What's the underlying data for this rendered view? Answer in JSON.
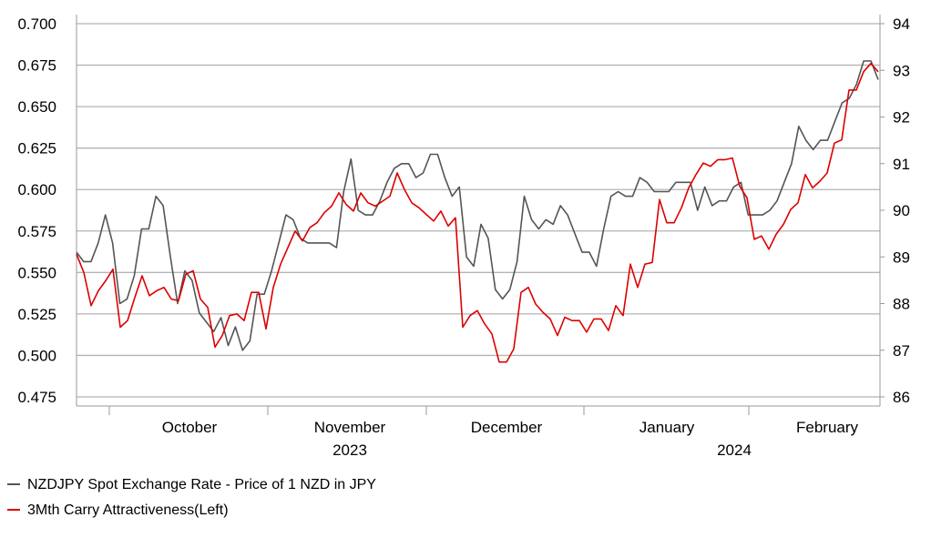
{
  "chart_data": {
    "type": "line",
    "title": "",
    "legend_position": "bottom-left",
    "grid": true,
    "x_axis": {
      "months": [
        "October",
        "November",
        "December",
        "January",
        "February"
      ],
      "years": [
        {
          "label": "2023",
          "month_index": 1
        },
        {
          "label": "2024",
          "month_index": 4
        }
      ]
    },
    "y_left": {
      "ylim": [
        0.475,
        0.7
      ],
      "ticks": [
        "0.475",
        "0.500",
        "0.525",
        "0.550",
        "0.575",
        "0.600",
        "0.625",
        "0.650",
        "0.675",
        "0.700"
      ]
    },
    "y_right": {
      "ylim": [
        86,
        94
      ],
      "ticks": [
        "86",
        "87",
        "88",
        "89",
        "90",
        "91",
        "92",
        "93",
        "94"
      ]
    },
    "colors": {
      "spot": "#555555",
      "carry": "#dd0000",
      "grid": "#b4b4b4",
      "axis": "#999999"
    },
    "series": [
      {
        "name": "NZDJPY Spot Exchange Rate - Price of 1 NZD in JPY",
        "axis": "right",
        "values": [
          89.1,
          88.9,
          88.9,
          89.3,
          89.9,
          89.3,
          88.0,
          88.1,
          88.6,
          89.6,
          89.6,
          90.3,
          90.1,
          89.0,
          88.0,
          88.7,
          88.5,
          87.8,
          87.6,
          87.4,
          87.7,
          87.1,
          87.5,
          87.0,
          87.2,
          88.2,
          88.2,
          88.7,
          89.3,
          89.9,
          89.8,
          89.4,
          89.3,
          89.3,
          89.3,
          89.3,
          89.2,
          90.4,
          91.1,
          90.0,
          89.9,
          89.9,
          90.2,
          90.6,
          90.9,
          91.0,
          91.0,
          90.7,
          90.8,
          91.2,
          91.2,
          90.7,
          90.3,
          90.5,
          89.0,
          88.8,
          89.7,
          89.4,
          88.3,
          88.1,
          88.3,
          88.9,
          90.3,
          89.8,
          89.6,
          89.8,
          89.7,
          90.1,
          89.9,
          89.5,
          89.1,
          89.1,
          88.8,
          89.6,
          90.3,
          90.4,
          90.3,
          90.3,
          90.7,
          90.6,
          90.4,
          90.4,
          90.4,
          90.6,
          90.6,
          90.6,
          90.0,
          90.5,
          90.1,
          90.2,
          90.2,
          90.5,
          90.6,
          89.9,
          89.9,
          89.9,
          90.0,
          90.2,
          90.6,
          91.0,
          91.8,
          91.5,
          91.3,
          91.5,
          91.5,
          91.9,
          92.3,
          92.4,
          92.7,
          93.2,
          93.2,
          92.8
        ]
      },
      {
        "name": "3Mth Carry Attractiveness(Left)",
        "axis": "left",
        "values": [
          0.561,
          0.55,
          0.53,
          0.539,
          0.545,
          0.552,
          0.517,
          0.521,
          0.535,
          0.548,
          0.536,
          0.539,
          0.541,
          0.534,
          0.533,
          0.549,
          0.551,
          0.534,
          0.529,
          0.505,
          0.512,
          0.524,
          0.525,
          0.521,
          0.538,
          0.538,
          0.516,
          0.541,
          0.555,
          0.565,
          0.575,
          0.569,
          0.577,
          0.58,
          0.586,
          0.59,
          0.598,
          0.591,
          0.587,
          0.598,
          0.592,
          0.59,
          0.593,
          0.596,
          0.61,
          0.6,
          0.592,
          0.589,
          0.585,
          0.581,
          0.587,
          0.578,
          0.583,
          0.517,
          0.524,
          0.527,
          0.519,
          0.513,
          0.496,
          0.496,
          0.504,
          0.538,
          0.541,
          0.531,
          0.526,
          0.522,
          0.512,
          0.523,
          0.521,
          0.521,
          0.514,
          0.522,
          0.522,
          0.515,
          0.53,
          0.524,
          0.555,
          0.541,
          0.555,
          0.556,
          0.594,
          0.58,
          0.58,
          0.589,
          0.601,
          0.609,
          0.616,
          0.614,
          0.618,
          0.618,
          0.619,
          0.602,
          0.595,
          0.57,
          0.572,
          0.564,
          0.573,
          0.579,
          0.588,
          0.592,
          0.609,
          0.601,
          0.605,
          0.61,
          0.628,
          0.63,
          0.66,
          0.66,
          0.671,
          0.676,
          0.671
        ]
      }
    ]
  }
}
